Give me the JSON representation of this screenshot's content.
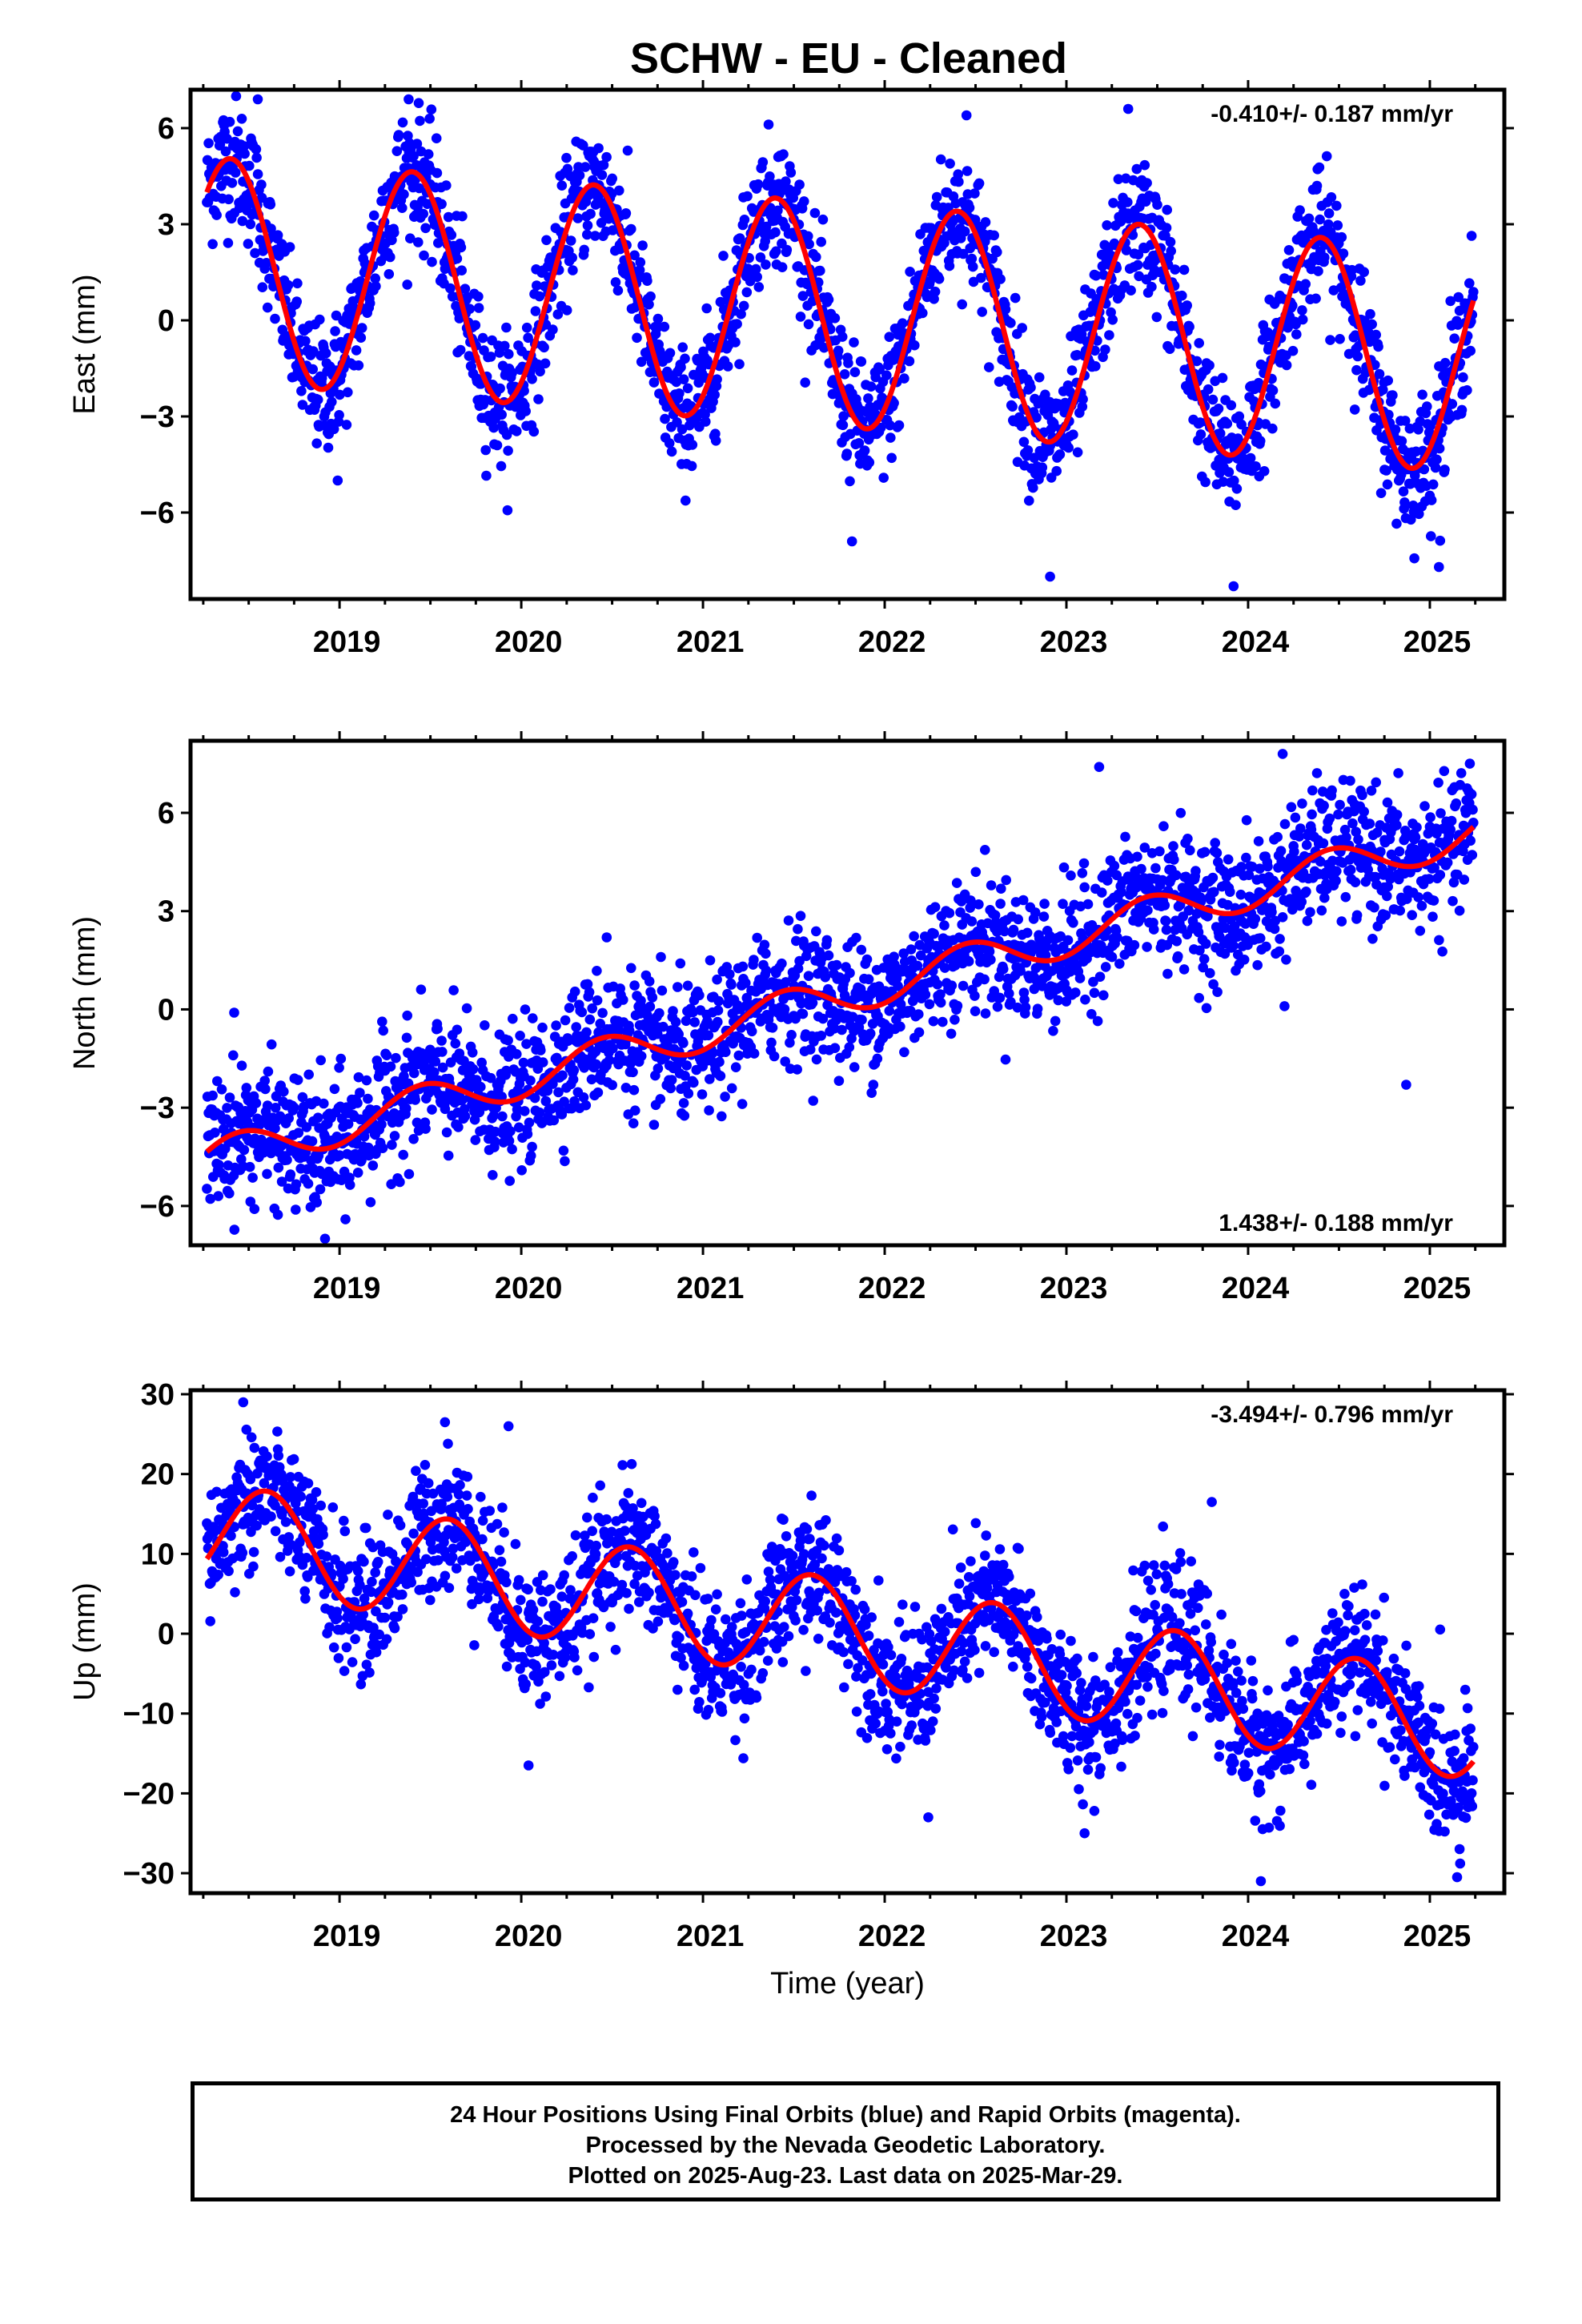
{
  "title": "SCHW  - EU - Cleaned",
  "footer": {
    "line1": "24 Hour Positions Using Final Orbits (blue) and Rapid Orbits (magenta).",
    "line2": "Processed by the Nevada Geodetic Laboratory.",
    "line3": "Plotted on 2025-Aug-23. Last data on 2025-Mar-29."
  },
  "colors": {
    "points": "#0000ff",
    "fit": "#ff0000",
    "axes": "#000000",
    "background": "#ffffff"
  },
  "chart_data": [
    {
      "type": "scatter",
      "name": "east",
      "ylabel": "East (mm)",
      "xlabel": "",
      "xlim": [
        2018.18,
        2025.41
      ],
      "ylim": [
        -8.7,
        7.2
      ],
      "yticks": [
        -6,
        -3,
        0,
        3,
        6
      ],
      "xticks": [
        2019,
        2020,
        2021,
        2022,
        2023,
        2024,
        2025
      ],
      "rate_label": "-0.410+/- 0.187 mm/yr",
      "rate_position": "top-right",
      "model": {
        "start": 2018.27,
        "end": 2025.24,
        "trend_mm_per_yr": -0.41,
        "offset": 1.6,
        "annual_amplitude": 3.5,
        "annual_peak": 0.4
      },
      "scatter_noise_mm": 1.0,
      "outliers": [
        {
          "x": 2022.91,
          "y": -8.0
        },
        {
          "x": 2023.92,
          "y": -8.3
        },
        {
          "x": 2021.82,
          "y": -6.9
        },
        {
          "x": 2018.55,
          "y": 6.9
        },
        {
          "x": 2019.38,
          "y": 6.9
        },
        {
          "x": 2023.34,
          "y": 6.6
        },
        {
          "x": 2022.45,
          "y": 6.4
        },
        {
          "x": 2018.99,
          "y": -5.0
        },
        {
          "x": 2025.05,
          "y": -7.7
        }
      ]
    },
    {
      "type": "scatter",
      "name": "north",
      "ylabel": "North (mm)",
      "xlabel": "",
      "xlim": [
        2018.18,
        2025.41
      ],
      "ylim": [
        -7.2,
        8.2
      ],
      "yticks": [
        -6,
        -3,
        0,
        3,
        6
      ],
      "xticks": [
        2019,
        2020,
        2021,
        2022,
        2023,
        2024,
        2025
      ],
      "rate_label": "1.438+/- 0.188 mm/yr",
      "rate_position": "bottom-right",
      "model": {
        "start": 2018.27,
        "end": 2025.24,
        "trend_mm_per_yr": 1.438,
        "offset": -4.6,
        "annual_amplitude": 0.6,
        "annual_peak": 0.45
      },
      "scatter_noise_mm": 1.0,
      "outliers": [
        {
          "x": 2018.42,
          "y": -0.1
        },
        {
          "x": 2023.18,
          "y": 7.4
        },
        {
          "x": 2024.19,
          "y": 7.8
        },
        {
          "x": 2024.87,
          "y": -2.3
        },
        {
          "x": 2024.2,
          "y": 0.1
        },
        {
          "x": 2018.92,
          "y": -7.0
        },
        {
          "x": 2020.47,
          "y": 2.2
        },
        {
          "x": 2025.22,
          "y": 7.5
        }
      ]
    },
    {
      "type": "scatter",
      "name": "up",
      "ylabel": "Up (mm)",
      "xlabel": "Time (year)",
      "xlim": [
        2018.18,
        2025.41
      ],
      "ylim": [
        -32.5,
        30.5
      ],
      "yticks": [
        -30,
        -20,
        -10,
        0,
        10,
        20,
        30
      ],
      "xticks": [
        2019,
        2020,
        2021,
        2022,
        2023,
        2024,
        2025
      ],
      "rate_label": "-3.494+/- 0.796 mm/yr",
      "rate_position": "top-right",
      "model": {
        "start": 2018.27,
        "end": 2025.24,
        "trend_mm_per_yr": -3.494,
        "offset": 12.5,
        "annual_amplitude": 6.5,
        "annual_peak": 0.6
      },
      "scatter_noise_mm": 4.2,
      "outliers": [
        {
          "x": 2018.47,
          "y": 29.0
        },
        {
          "x": 2019.58,
          "y": 26.5
        },
        {
          "x": 2019.93,
          "y": 26.0
        },
        {
          "x": 2020.04,
          "y": -16.5
        },
        {
          "x": 2024.07,
          "y": -31.0
        },
        {
          "x": 2025.15,
          "y": -30.5
        },
        {
          "x": 2022.24,
          "y": -23.0
        },
        {
          "x": 2023.1,
          "y": -25.0
        },
        {
          "x": 2023.8,
          "y": 16.5
        }
      ]
    }
  ]
}
